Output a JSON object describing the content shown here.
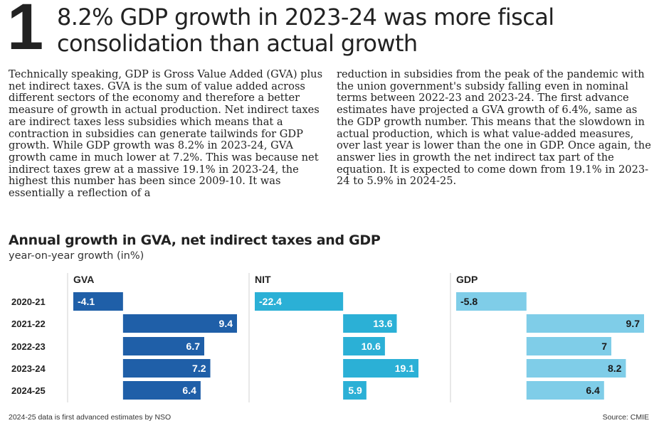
{
  "article": {
    "number": "1",
    "headline": "8.2% GDP growth in 2023-24 was more fiscal consolidation than actual growth",
    "col1": "Technically speaking, GDP is Gross Value Added (GVA) plus net indirect taxes. GVA is the sum of value added across different sectors of the economy and therefore a better measure of growth in actual production. Net indirect taxes are indirect taxes less subsidies which means that a contraction in subsidies can generate tailwinds for GDP growth. While GDP growth was 8.2% in 2023-24, GVA growth came in much lower at 7.2%. This was because net indirect taxes grew at a massive 19.1% in 2023-24, the highest this number has been since 2009-10. It was essentially a reflection of a",
    "col2": "reduction in subsidies from the peak of the pandemic with the union government's subsidy falling even in nominal terms between 2022-23 and 2023-24. The first advance estimates have projected a GVA growth of 6.4%, same as the GDP growth number. This means that the slowdown in actual production, which is what value-added measures, over last year is lower than the one in GDP. Once again, the answer lies in growth the net indirect tax part of the equation. It is expected to come down from 19.1% in 2023-24 to 5.9% in 2024-25."
  },
  "chart_data": {
    "type": "bar",
    "orientation": "horizontal",
    "title": "Annual growth in GVA, net indirect taxes and GDP",
    "subtitle": "year-on-year growth (in%)",
    "categories": [
      "2020-21",
      "2021-22",
      "2022-23",
      "2023-24",
      "2024-25"
    ],
    "series": [
      {
        "name": "GVA",
        "values": [
          -4.1,
          9.4,
          6.7,
          7.2,
          6.4
        ],
        "color": "#1f5fa8"
      },
      {
        "name": "NIT",
        "values": [
          -22.4,
          13.6,
          10.6,
          19.1,
          5.9
        ],
        "color": "#2bb0d6"
      },
      {
        "name": "GDP",
        "values": [
          -5.8,
          9.7,
          7,
          8.2,
          6.4
        ],
        "color": "#7fcde8"
      }
    ],
    "grid": false,
    "footnote": "2024-25 data is first advanced estimates by NSO",
    "source": "Source: CMIE"
  }
}
